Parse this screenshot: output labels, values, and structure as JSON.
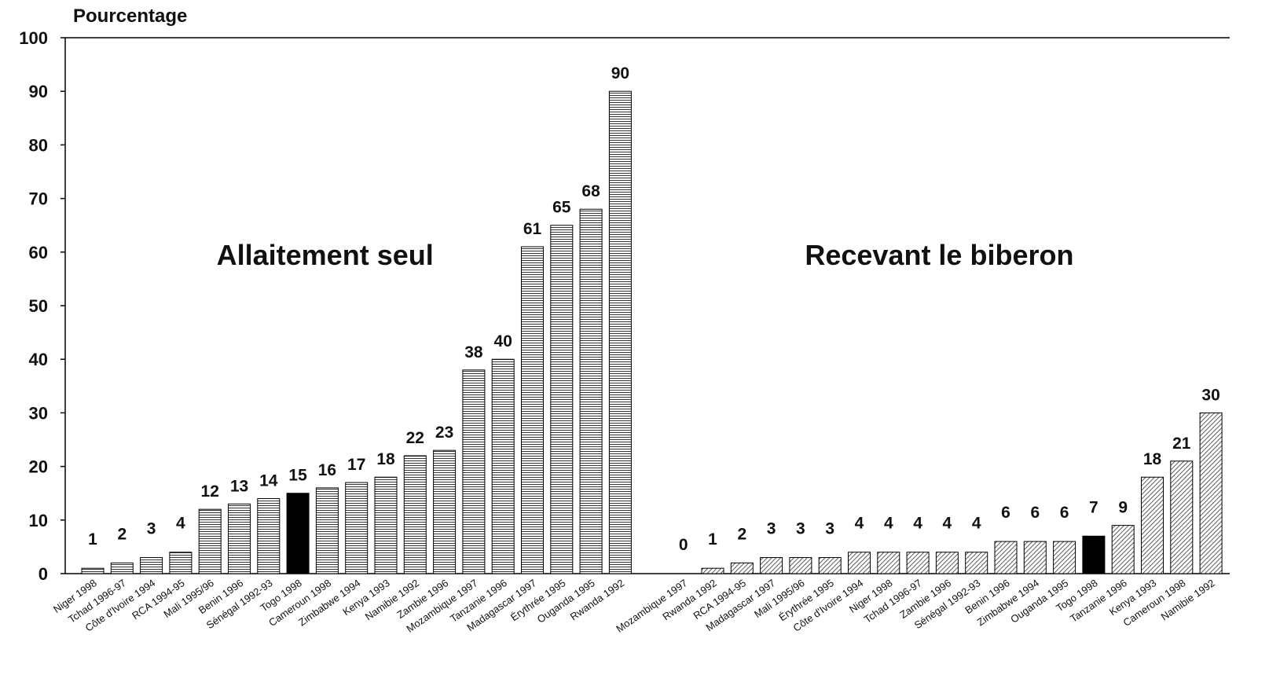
{
  "chart_data": {
    "type": "bar",
    "y_label": "Pourcentage",
    "ylim": [
      0,
      100
    ],
    "yticks": [
      0,
      10,
      20,
      30,
      40,
      50,
      60,
      70,
      80,
      90,
      100
    ],
    "highlight": "Togo 1998",
    "highlight_color": "#000000",
    "groups": [
      {
        "label": "Allaitement seul",
        "pattern": "horizontal",
        "categories": [
          "Niger 1998",
          "Tchad 1996-97",
          "Côte d'Ivoire 1994",
          "RCA 1994-95",
          "Mali 1995/96",
          "Benin 1996",
          "Sénégal 1992-93",
          "Togo 1998",
          "Cameroun 1998",
          "Zimbabwe 1994",
          "Kenya 1993",
          "Namibie 1992",
          "Zambie 1996",
          "Mozambique 1997",
          "Tanzanie 1996",
          "Madagascar 1997",
          "Érythrée 1995",
          "Ouganda 1995",
          "Rwanda 1992"
        ],
        "values": [
          1,
          2,
          3,
          4,
          12,
          13,
          14,
          15,
          16,
          17,
          18,
          22,
          23,
          38,
          40,
          61,
          65,
          68,
          90
        ]
      },
      {
        "label": "Recevant le biberon",
        "pattern": "diagonal",
        "categories": [
          "Mozambique 1997",
          "Rwanda 1992",
          "RCA 1994-95",
          "Madagascar 1997",
          "Mali 1995/96",
          "Érythrée 1995",
          "Côte d'Ivoire 1994",
          "Niger 1998",
          "Tchad 1996-97",
          "Zambie 1996",
          "Sénégal 1992-93",
          "Benin 1996",
          "Zimbabwe 1994",
          "Ouganda 1995",
          "Togo 1998",
          "Tanzanie 1996",
          "Kenya 1993",
          "Cameroun 1998",
          "Namibie 1992"
        ],
        "values": [
          0,
          1,
          2,
          3,
          3,
          3,
          4,
          4,
          4,
          4,
          4,
          6,
          6,
          6,
          7,
          9,
          18,
          21,
          30
        ]
      }
    ]
  }
}
